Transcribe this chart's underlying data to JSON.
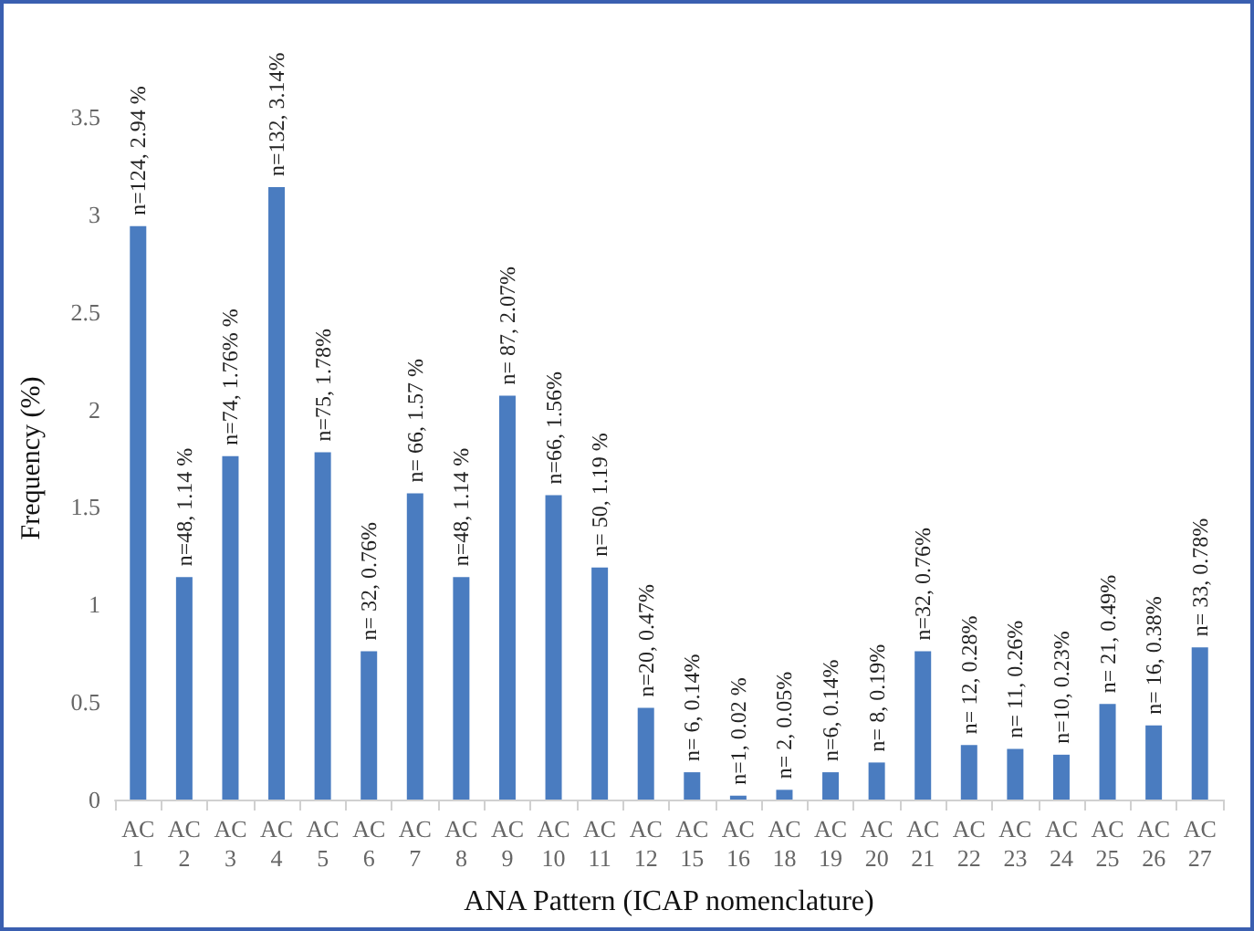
{
  "chart_data": {
    "type": "bar",
    "xlabel": "ANA Pattern (ICAP nomenclature)",
    "ylabel": "Frequency (%)",
    "categories": [
      "AC 1",
      "AC 2",
      "AC 3",
      "AC 4",
      "AC 5",
      "AC 6",
      "AC 7",
      "AC 8",
      "AC 9",
      "AC 10",
      "AC 11",
      "AC 12",
      "AC 15",
      "AC 16",
      "AC 18",
      "AC 19",
      "AC 20",
      "AC 21",
      "AC 22",
      "AC 23",
      "AC 24",
      "AC 25",
      "AC 26",
      "AC 27"
    ],
    "values": [
      2.94,
      1.14,
      1.76,
      3.14,
      1.78,
      0.76,
      1.57,
      1.14,
      2.07,
      1.56,
      1.19,
      0.47,
      0.14,
      0.02,
      0.05,
      0.14,
      0.19,
      0.76,
      0.28,
      0.26,
      0.23,
      0.49,
      0.38,
      0.78
    ],
    "value_labels": [
      "n=124, 2.94 %",
      "n=48, 1.14 %",
      "n=74, 1.76% %",
      "n=132, 3.14%",
      "n=75, 1.78%",
      "n= 32, 0.76%",
      "n= 66, 1.57 %",
      "n=48, 1.14 %",
      "n= 87, 2.07%",
      "n=66, 1.56%",
      "n= 50, 1.19 %",
      "n=20, 0.47%",
      "n= 6, 0.14%",
      "n=1, 0.02 %",
      "n= 2, 0.05%",
      "n=6, 0.14%",
      "n= 8, 0.19%",
      "n=32, 0.76%",
      "n= 12, 0.28%",
      "n= 11, 0.26%",
      "n=10, 0.23%",
      "n= 21, 0.49%",
      "n= 16, 0.38%",
      "n= 33, 0.78%"
    ],
    "color": "#4a7cc0",
    "ylim": [
      0,
      3.5
    ],
    "yticks": [
      0,
      0.5,
      1,
      1.5,
      2,
      2.5,
      3,
      3.5
    ],
    "grid": false
  }
}
